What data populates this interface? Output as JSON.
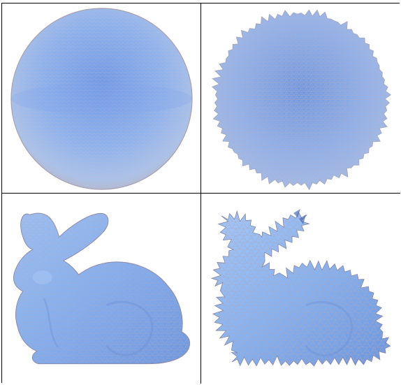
{
  "figure": {
    "panels": [
      {
        "id": "smooth-sphere",
        "shape": "sphere",
        "surface": "smooth",
        "color": "#8fb4ee"
      },
      {
        "id": "noisy-sphere",
        "shape": "sphere",
        "surface": "noisy",
        "color": "#8fb4ee"
      },
      {
        "id": "smooth-bunny",
        "shape": "bunny",
        "surface": "smooth",
        "color": "#86b2f0"
      },
      {
        "id": "noisy-bunny",
        "shape": "bunny",
        "surface": "noisy",
        "color": "#86b2f0"
      }
    ],
    "mesh_line_color": "#b8a8b8"
  }
}
